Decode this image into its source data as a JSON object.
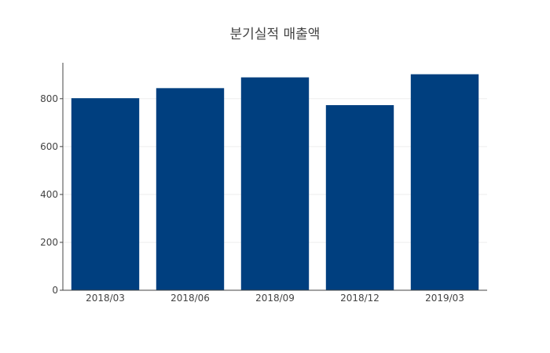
{
  "chart_data": {
    "type": "bar",
    "title": "분기실적 매출액",
    "xlabel": "",
    "ylabel": "",
    "categories": [
      "2018/03",
      "2018/06",
      "2018/09",
      "2018/12",
      "2019/03"
    ],
    "values": [
      802,
      844,
      889,
      773,
      902
    ],
    "ylim": [
      0,
      950
    ],
    "yticks": [
      0,
      200,
      400,
      600,
      800
    ],
    "grid": true,
    "legend": false,
    "colors": {
      "bar": "#003f7f"
    }
  }
}
